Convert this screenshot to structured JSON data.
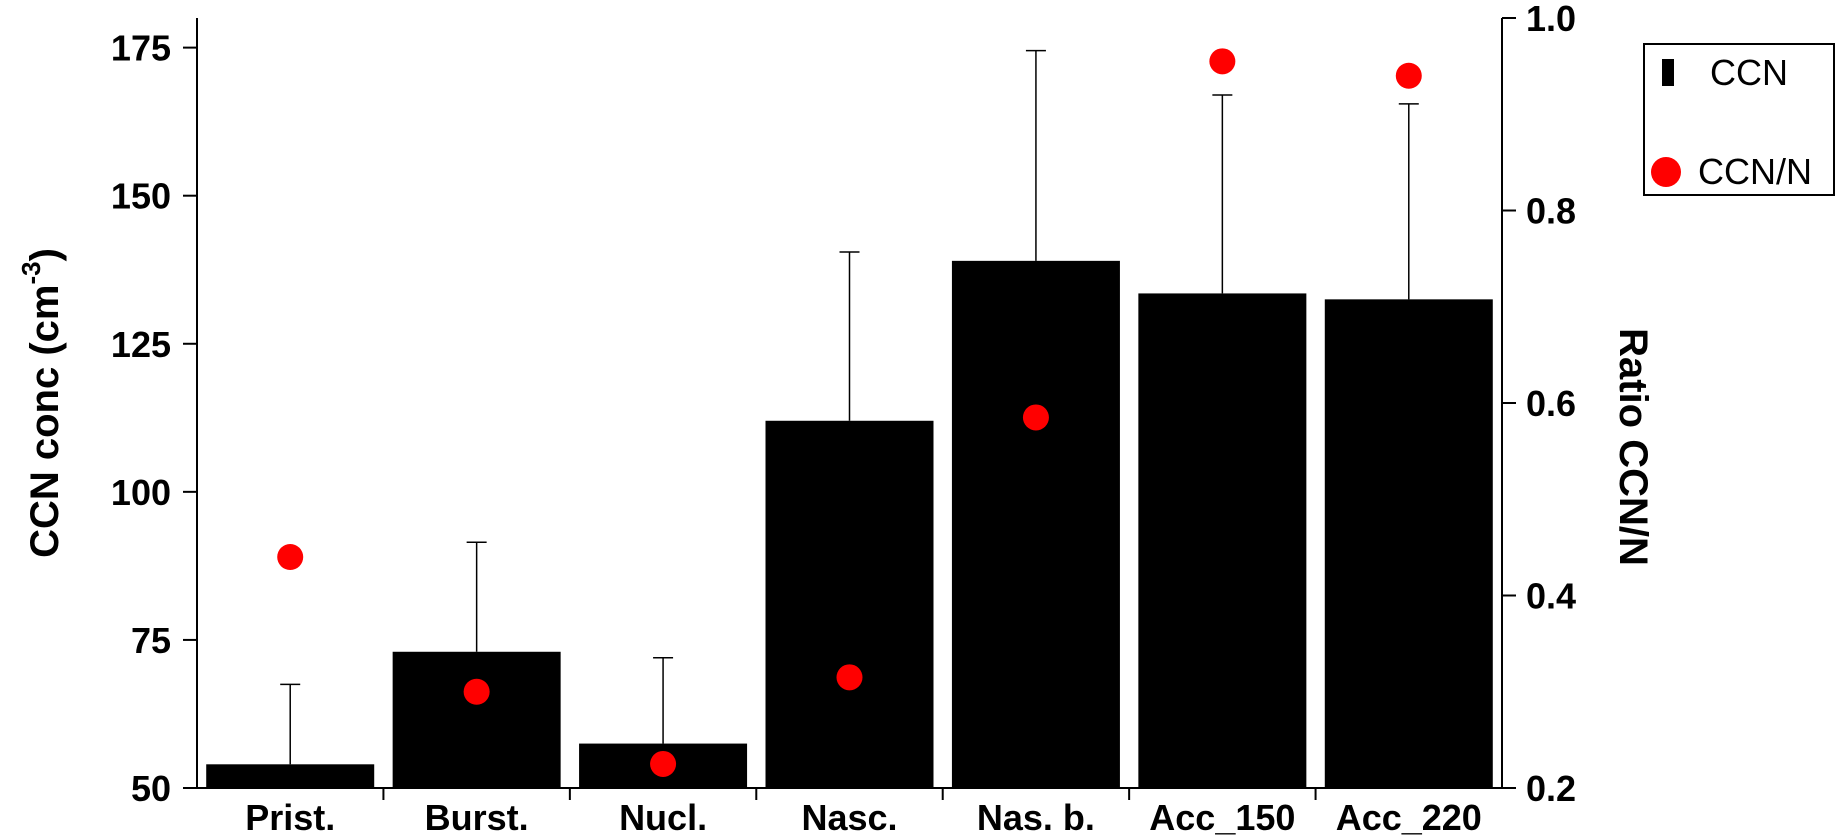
{
  "chart_data": {
    "type": "bar",
    "categories": [
      "Prist.",
      "Burst.",
      "Nucl.",
      "Nasc.",
      "Nas. b.",
      "Acc_150",
      "Acc_220"
    ],
    "series": [
      {
        "name": "CCN",
        "type": "bar",
        "axis": "left",
        "values": [
          54,
          73,
          57.5,
          112,
          139,
          133.5,
          132.5
        ],
        "error_upper": [
          67.5,
          91.5,
          72,
          140.5,
          174.5,
          167,
          165.5
        ],
        "color": "#000000"
      },
      {
        "name": "CCN/N",
        "type": "scatter",
        "axis": "right",
        "values": [
          0.44,
          0.3,
          0.225,
          0.315,
          0.585,
          0.955,
          0.94
        ],
        "color": "#ff0000"
      }
    ],
    "ylabel": "CCN conc (cm",
    "ylabel_sup": "-3",
    "ylabel_close": ")",
    "y2label": "Ratio CCN/N",
    "ylim": [
      50,
      180
    ],
    "y2lim": [
      0.2,
      1.0
    ],
    "yticks": [
      "50",
      "75",
      "100",
      "125",
      "150",
      "175"
    ],
    "yticks_values": [
      50,
      75,
      100,
      125,
      150,
      175
    ],
    "y2ticks": [
      "0.2",
      "0.4",
      "0.6",
      "0.8",
      "1.0"
    ],
    "y2ticks_values": [
      0.2,
      0.4,
      0.6,
      0.8,
      1.0
    ],
    "legend": {
      "position": "top-right",
      "entries": [
        "CCN",
        "CCN/N"
      ]
    },
    "grid": false
  }
}
